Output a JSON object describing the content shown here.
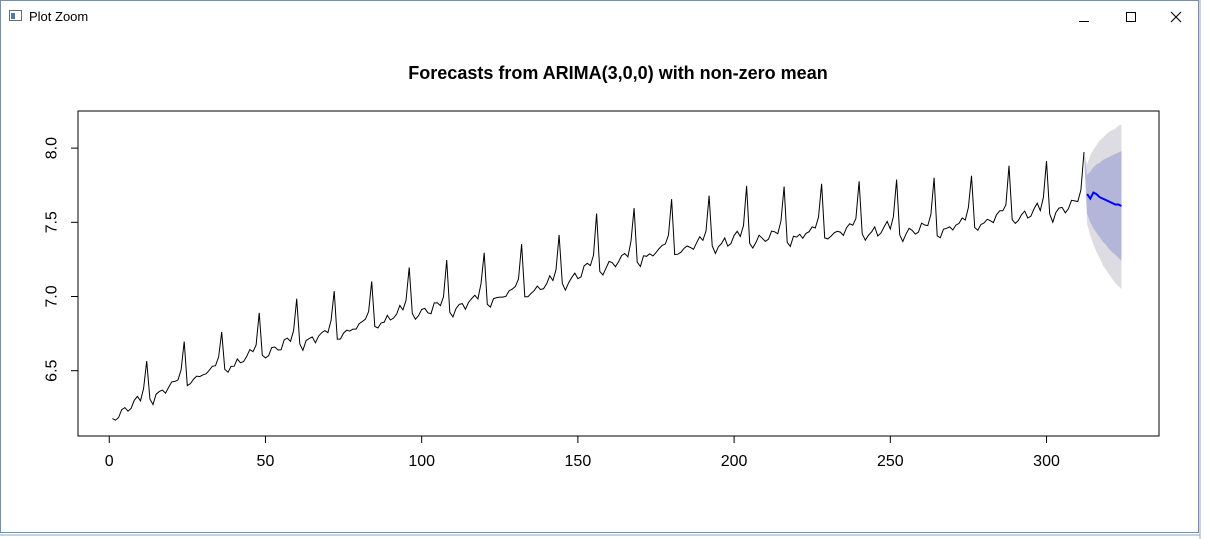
{
  "window": {
    "title": "Plot Zoom",
    "icons": {
      "app": "plot-window-icon",
      "minimize": "minimize-icon",
      "maximize": "maximize-icon",
      "close": "close-icon"
    }
  },
  "colors": {
    "observed": "#000000",
    "forecast": "#0000ff",
    "band80": "#b3b6d8",
    "band95": "#dcdce2",
    "frame": "#000000"
  },
  "chart_data": {
    "type": "line",
    "title": "Forecasts from ARIMA(3,0,0) with non-zero mean",
    "xlabel": "",
    "ylabel": "",
    "xlim": [
      -10,
      336
    ],
    "ylim": [
      6.06,
      8.25
    ],
    "x_ticks": [
      0,
      50,
      100,
      150,
      200,
      250,
      300
    ],
    "y_ticks": [
      6.5,
      7.0,
      7.5,
      8.0
    ],
    "y_tick_labels": [
      "6.5",
      "7.0",
      "7.5",
      "8.0"
    ],
    "grid": false,
    "legend": "none",
    "observed": {
      "start_x": 1,
      "seasonal_period": 12,
      "trend_knots": [
        [
          1,
          6.18
        ],
        [
          12,
          6.3
        ],
        [
          24,
          6.42
        ],
        [
          36,
          6.5
        ],
        [
          48,
          6.6
        ],
        [
          60,
          6.68
        ],
        [
          72,
          6.73
        ],
        [
          84,
          6.8
        ],
        [
          96,
          6.88
        ],
        [
          108,
          6.9
        ],
        [
          120,
          6.96
        ],
        [
          132,
          7.01
        ],
        [
          144,
          7.07
        ],
        [
          156,
          7.18
        ],
        [
          168,
          7.24
        ],
        [
          180,
          7.3
        ],
        [
          192,
          7.33
        ],
        [
          204,
          7.37
        ],
        [
          216,
          7.38
        ],
        [
          228,
          7.41
        ],
        [
          240,
          7.42
        ],
        [
          252,
          7.42
        ],
        [
          264,
          7.43
        ],
        [
          276,
          7.47
        ],
        [
          288,
          7.52
        ],
        [
          300,
          7.55
        ],
        [
          312,
          7.6
        ]
      ],
      "seasonal_pattern": [
        -0.01,
        -0.04,
        0.0,
        0.02,
        0.03,
        0.0,
        0.01,
        0.05,
        0.07,
        0.05,
        0.12,
        0.36
      ],
      "end_x": 312
    },
    "forecast": {
      "x": [
        313,
        314,
        315,
        316,
        317,
        318,
        319,
        320,
        321,
        322,
        323,
        324
      ],
      "mean": [
        7.69,
        7.66,
        7.7,
        7.69,
        7.67,
        7.66,
        7.65,
        7.64,
        7.63,
        7.62,
        7.62,
        7.61
      ],
      "lo80": [
        7.56,
        7.5,
        7.46,
        7.43,
        7.4,
        7.37,
        7.35,
        7.32,
        7.3,
        7.28,
        7.26,
        7.24
      ],
      "hi80": [
        7.82,
        7.84,
        7.87,
        7.89,
        7.9,
        7.92,
        7.93,
        7.94,
        7.95,
        7.96,
        7.97,
        7.98
      ],
      "lo95": [
        7.49,
        7.41,
        7.35,
        7.3,
        7.26,
        7.21,
        7.18,
        7.15,
        7.12,
        7.09,
        7.07,
        7.05
      ],
      "hi95": [
        7.89,
        7.95,
        7.99,
        8.02,
        8.05,
        8.07,
        8.09,
        8.11,
        8.12,
        8.13,
        8.15,
        8.16
      ]
    }
  }
}
